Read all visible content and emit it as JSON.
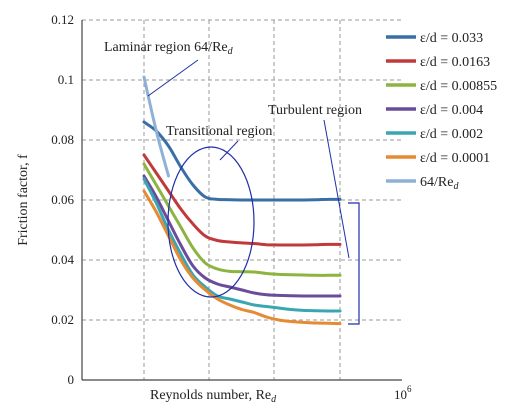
{
  "chart_data": {
    "type": "line",
    "title": "",
    "xlabel": "Reynolds number, Re",
    "xlabel_sub": "d",
    "ylabel": "Friction factor, f",
    "ylim": [
      0,
      0.12
    ],
    "y_ticks": [
      "0",
      "0.02",
      "0.04",
      "0.06",
      "0.08",
      "0.1",
      "0.12"
    ],
    "x_tick_label": "10",
    "x_tick_sup": "6",
    "grid": true,
    "legend_position": "right",
    "x": [
      0,
      1,
      2,
      3,
      4,
      5,
      6,
      7,
      8,
      9,
      10,
      11,
      12,
      13,
      14,
      15,
      16
    ],
    "series": [
      {
        "name": "ε/d = 0.033",
        "color": "#3a6ea5",
        "values": [
          0.086,
          0.083,
          0.078,
          0.071,
          0.065,
          0.061,
          0.0602,
          0.0601,
          0.06,
          0.06,
          0.06,
          0.06,
          0.06,
          0.06,
          0.0601,
          0.0602,
          0.0602
        ]
      },
      {
        "name": "ε/d = 0.0163",
        "color": "#c0393b",
        "values": [
          0.075,
          0.069,
          0.063,
          0.057,
          0.052,
          0.048,
          0.0465,
          0.046,
          0.0457,
          0.0455,
          0.0451,
          0.045,
          0.045,
          0.045,
          0.0451,
          0.0452,
          0.0452
        ]
      },
      {
        "name": "ε/d = 0.00855",
        "color": "#8db440",
        "values": [
          0.072,
          0.065,
          0.058,
          0.051,
          0.044,
          0.039,
          0.037,
          0.0362,
          0.0361,
          0.036,
          0.0355,
          0.0352,
          0.0351,
          0.035,
          0.0349,
          0.0349,
          0.0349
        ]
      },
      {
        "name": "ε/d = 0.004",
        "color": "#6a4d9a",
        "values": [
          0.068,
          0.061,
          0.053,
          0.045,
          0.038,
          0.034,
          0.032,
          0.031,
          0.03,
          0.029,
          0.0284,
          0.0282,
          0.0281,
          0.028,
          0.028,
          0.028,
          0.028
        ]
      },
      {
        "name": "ε/d = 0.002",
        "color": "#3aa6b3",
        "values": [
          0.067,
          0.059,
          0.05,
          0.042,
          0.035,
          0.031,
          0.028,
          0.027,
          0.026,
          0.025,
          0.0245,
          0.024,
          0.0235,
          0.0232,
          0.0231,
          0.023,
          0.023
        ]
      },
      {
        "name": "ε/d = 0.0001",
        "color": "#e68a34",
        "values": [
          0.063,
          0.056,
          0.048,
          0.04,
          0.034,
          0.03,
          0.027,
          0.025,
          0.0235,
          0.0225,
          0.021,
          0.02,
          0.0195,
          0.0192,
          0.019,
          0.0189,
          0.0188
        ]
      },
      {
        "name": "64/Re",
        "name_sub": "d",
        "color": "#8fb1d6",
        "x": [
          0,
          1,
          2
        ],
        "values": [
          0.101,
          0.083,
          0.068
        ]
      }
    ],
    "annotations": [
      {
        "text": "Laminar region  64/Re",
        "sub": "d"
      },
      {
        "text": "Transitional region"
      },
      {
        "text": "Turbulent  region"
      }
    ]
  }
}
